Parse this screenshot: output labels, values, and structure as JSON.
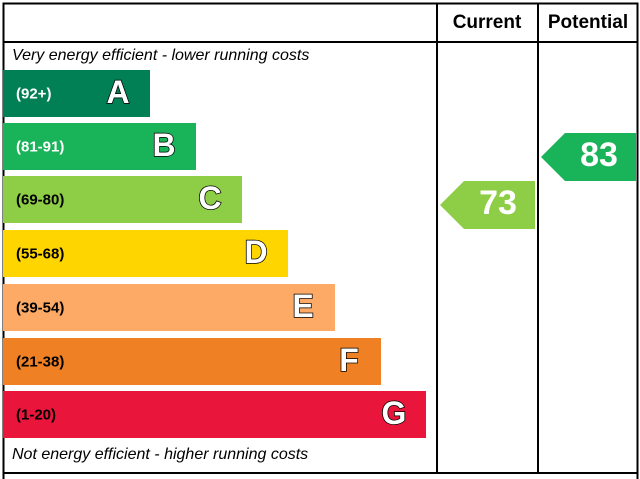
{
  "header": {
    "current": "Current",
    "potential": "Potential"
  },
  "top_note": "Very energy efficient - lower running costs",
  "bottom_note": "Not energy efficient - higher running costs",
  "bands": [
    {
      "range": "(92+)",
      "letter": "A"
    },
    {
      "range": "(81-91)",
      "letter": "B"
    },
    {
      "range": "(69-80)",
      "letter": "C"
    },
    {
      "range": "(55-68)",
      "letter": "D"
    },
    {
      "range": "(39-54)",
      "letter": "E"
    },
    {
      "range": "(21-38)",
      "letter": "F"
    },
    {
      "range": "(1-20)",
      "letter": "G"
    }
  ],
  "current": {
    "value": 73
  },
  "potential": {
    "value": 83
  }
}
